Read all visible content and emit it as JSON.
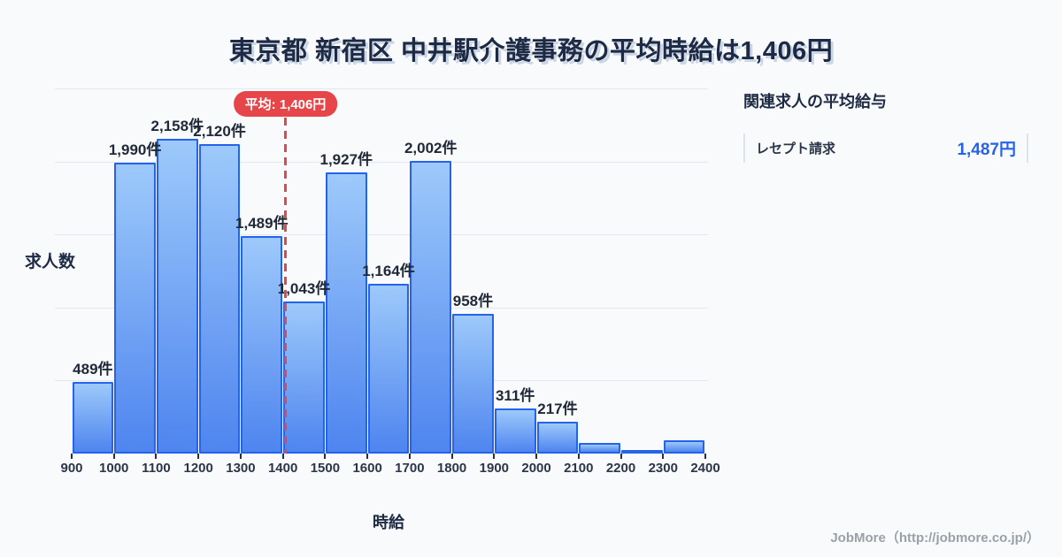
{
  "title": "東京都 新宿区 中井駅介護事務の平均時給は1,406円",
  "chart_data": {
    "type": "bar",
    "title": "東京都 新宿区 中井駅介護事務の平均時給は1,406円",
    "xlabel": "時給",
    "ylabel": "求人数",
    "bin_edges": [
      900,
      1000,
      1100,
      1200,
      1300,
      1400,
      1500,
      1600,
      1700,
      1800,
      1900,
      2000,
      2100,
      2200,
      2300,
      2400
    ],
    "values": [
      489,
      1990,
      2158,
      2120,
      1489,
      1043,
      1927,
      1164,
      2002,
      958,
      311,
      217,
      70,
      15,
      90
    ],
    "bar_labels": [
      "489件",
      "1,990件",
      "2,158件",
      "2,120件",
      "1,489件",
      "1,043件",
      "1,927件",
      "1,164件",
      "2,002件",
      "958件",
      "311件",
      "217件",
      "",
      "",
      ""
    ],
    "ylim": [
      0,
      2500
    ],
    "grid_step": 500,
    "grid": "horizontal-only",
    "legend": "none",
    "average": {
      "value": 1406,
      "label": "平均: 1,406円"
    }
  },
  "panel": {
    "heading": "関連求人の平均給与",
    "items": [
      {
        "label": "レセプト請求",
        "value": "1,487円"
      }
    ]
  },
  "footer": {
    "credit": "JobMore（http://jobmore.co.jp/）"
  },
  "colors": {
    "background": "#f8fafc",
    "title_text": "#1e2a44",
    "bar_fill_top": "#9dc9fa",
    "bar_fill_bottom": "#4e85ef",
    "bar_border": "#2563eb",
    "gridline": "#e2e8f0",
    "average_red": "#e64549",
    "value_blue": "#2563eb",
    "axis_text": "#2b3648",
    "footer_text": "#9aa1a9"
  }
}
